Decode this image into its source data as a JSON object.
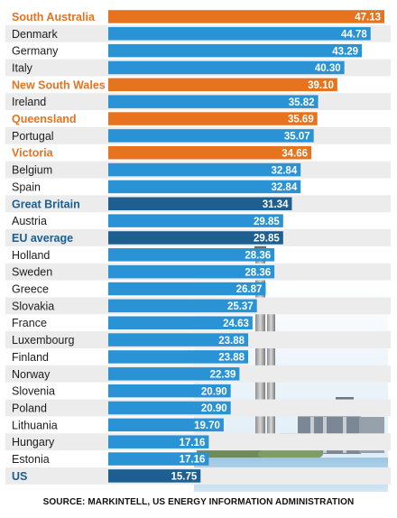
{
  "colors": {
    "default": "#2a93d5",
    "orange": "#e8731e",
    "navy": "#1d5f90",
    "row_band": "#ececec",
    "label_default": "#1d1d1d",
    "label_orange": "#e8731e",
    "label_navy": "#1b5e8f"
  },
  "chart_data": {
    "type": "bar",
    "orientation": "horizontal",
    "categories": [
      "South Australia",
      "Denmark",
      "Germany",
      "Italy",
      "New South Wales",
      "Ireland",
      "Queensland",
      "Portugal",
      "Victoria",
      "Belgium",
      "Spain",
      "Great Britain",
      "Austria",
      "EU average",
      "Holland",
      "Sweden",
      "Greece",
      "Slovakia",
      "France",
      "Luxembourg",
      "Finland",
      "Norway",
      "Slovenia",
      "Poland",
      "Lithuania",
      "Hungary",
      "Estonia",
      "US"
    ],
    "values": [
      47.13,
      44.78,
      43.29,
      40.3,
      39.1,
      35.82,
      35.69,
      35.07,
      34.66,
      32.84,
      32.84,
      31.34,
      29.85,
      29.85,
      28.36,
      28.36,
      26.87,
      25.37,
      24.63,
      23.88,
      23.88,
      22.39,
      20.9,
      20.9,
      19.7,
      17.16,
      17.16,
      15.75
    ],
    "value_labels": [
      "47.13",
      "44.78",
      "43.29",
      "40.30",
      "39.10",
      "35.82",
      "35.69",
      "35.07",
      "34.66",
      "32.84",
      "32.84",
      "31.34",
      "29.85",
      "29.85",
      "28.36",
      "28.36",
      "26.87",
      "25.37",
      "24.63",
      "23.88",
      "23.88",
      "22.39",
      "20.90",
      "20.90",
      "19.70",
      "17.16",
      "17.16",
      "15.75"
    ],
    "highlight": [
      "orange",
      "default",
      "default",
      "default",
      "orange",
      "default",
      "orange",
      "default",
      "orange",
      "default",
      "default",
      "navy",
      "default",
      "navy",
      "default",
      "default",
      "default",
      "default",
      "default",
      "default",
      "default",
      "default",
      "default",
      "default",
      "default",
      "default",
      "default",
      "navy"
    ],
    "xlim": [
      0,
      47.13
    ],
    "grid": false,
    "legend": "none",
    "source": "SOURCE: MARKINTELL, US ENERGY INFORMATION ADMINISTRATION"
  }
}
